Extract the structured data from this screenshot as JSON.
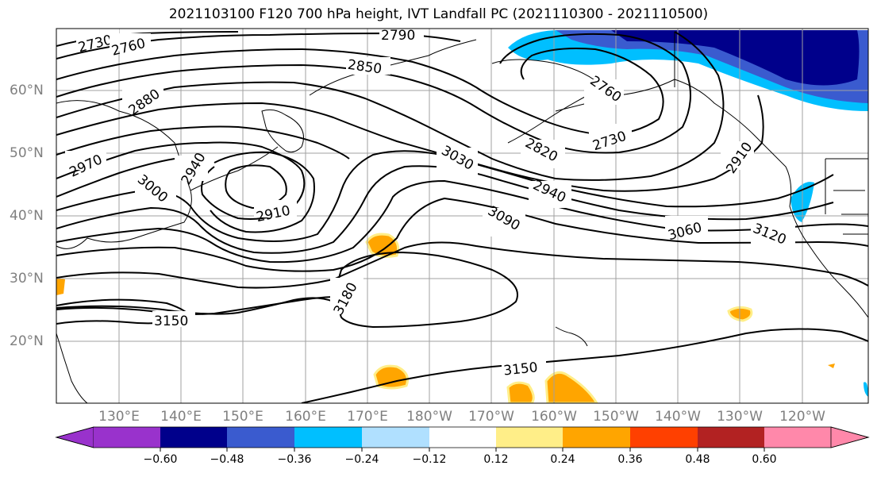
{
  "title": "2021103100 F120 700 hPa height, IVT Landfall PC (2021110300 - 2021110500)",
  "lon_labels": [
    "130°E",
    "140°E",
    "150°E",
    "160°E",
    "170°E",
    "180°W",
    "170°W",
    "160°W",
    "150°W",
    "140°W",
    "130°W",
    "120°W"
  ],
  "lat_labels": [
    "60°N",
    "50°N",
    "40°N",
    "30°N",
    "20°N"
  ],
  "contour_labels": [
    "2730",
    "2760",
    "2790",
    "2850",
    "2880",
    "2970",
    "3000",
    "2940",
    "2910",
    "2760",
    "2730",
    "2820",
    "3030",
    "2940",
    "3090",
    "3060",
    "3120",
    "2910",
    "3180",
    "3150",
    "3150"
  ],
  "colorbar": {
    "ticks": [
      "−0.60",
      "−0.48",
      "−0.36",
      "−0.24",
      "−0.12",
      "0.12",
      "0.24",
      "0.36",
      "0.48",
      "0.60"
    ],
    "colors": [
      "#9932cc",
      "#00008b",
      "#3a5bcf",
      "#00bfff",
      "#b0e0ff",
      "#ffffff",
      "#ffee88",
      "#ffa500",
      "#ff4000",
      "#b22222",
      "#ff88aa"
    ]
  }
}
